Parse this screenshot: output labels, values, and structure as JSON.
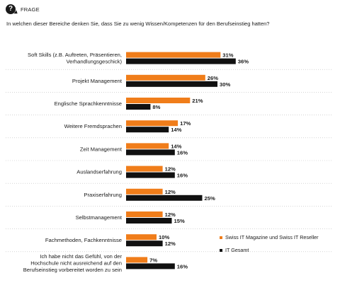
{
  "header": {
    "icon": "question-bubble-icon",
    "label": "FRAGE"
  },
  "question": "In welchen dieser Bereiche denken Sie, dass Sie zu wenig Wissen/Kompetenzen für den Berufseinstieg hatten?",
  "colors": {
    "orange": "#f07d1a",
    "black": "#111111",
    "separator": "#bbbbbb"
  },
  "legend": {
    "series1": "Swiss IT Magazine und Swiss IT Reseller",
    "series2": "IT Gesamt"
  },
  "chart_data": {
    "type": "bar",
    "orientation": "horizontal",
    "title": "",
    "xlabel": "",
    "ylabel": "",
    "xlim": [
      0,
      40
    ],
    "grid": false,
    "legend_position": "bottom-right",
    "categories": [
      [
        "Soft Skills (z.B. Auftreten, Präsentieren,",
        "Verhandlungsgeschick)"
      ],
      [
        "Projekt Management"
      ],
      [
        "Englische Sprachkenntnisse"
      ],
      [
        "Weitere Fremdsprachen"
      ],
      [
        "Zeit Management"
      ],
      [
        "Auslandserfahrung"
      ],
      [
        "Praxiserfahrung"
      ],
      [
        "Selbstmanagement"
      ],
      [
        "Fachmethoden, Fachkenntnisse"
      ],
      [
        "Ich habe nicht das Gefühl, von der",
        "Hochschule nicht ausreichend auf den",
        "Berufseinstieg vorbereitet worden zu sein"
      ]
    ],
    "series": [
      {
        "name": "Swiss IT Magazine und Swiss IT Reseller",
        "color": "#f07d1a",
        "values": [
          31,
          26,
          21,
          17,
          14,
          12,
          12,
          12,
          10,
          7
        ]
      },
      {
        "name": "IT Gesamt",
        "color": "#111111",
        "values": [
          36,
          30,
          8,
          14,
          16,
          16,
          25,
          15,
          12,
          16
        ]
      }
    ],
    "value_suffix": "%"
  }
}
